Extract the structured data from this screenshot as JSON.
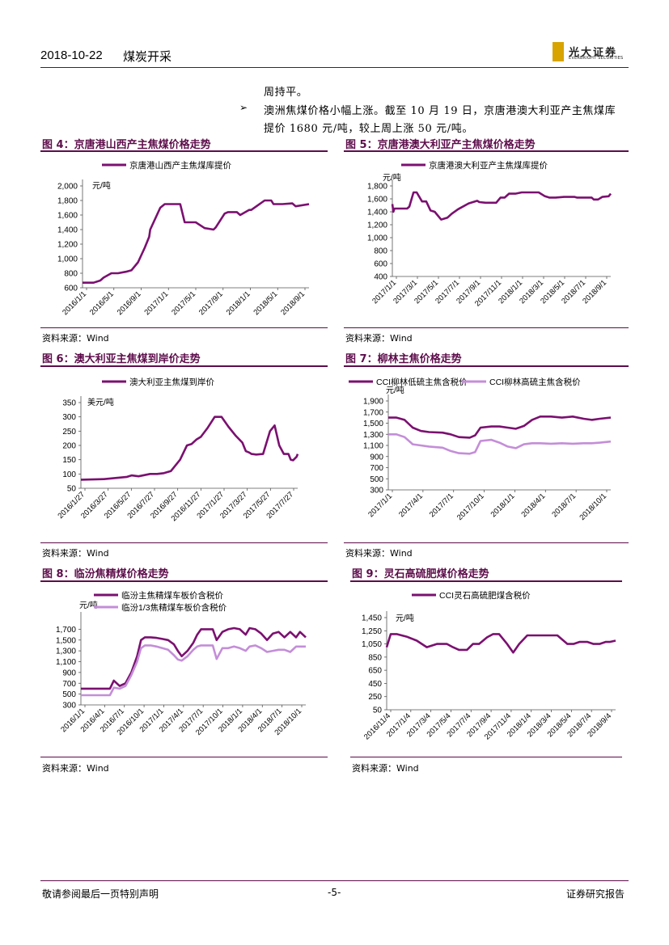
{
  "header": {
    "date": "2018-10-22",
    "sector": "煤炭开采",
    "logo_cn": "光大证券",
    "logo_en": "EVERBRIGHT SECURITIES"
  },
  "text": {
    "line1": "周持平。",
    "line2": "澳洲焦煤价格小幅上涨。截至 10 月 19 日，京唐港澳大利亚产主焦煤库",
    "line3": "提价 1680 元/吨，较上周上涨 50 元/吨。"
  },
  "colors": {
    "primary": "#7b1070",
    "secondary": "#c48ed8",
    "rule": "#5d0d4b"
  },
  "figures": {
    "f4": {
      "title": "图 4：京唐港山西产主焦煤价格走势",
      "source": "资料来源：Wind"
    },
    "f5": {
      "title": "图 5：京唐港澳大利亚产主焦煤价格走势",
      "source": "资料来源：Wind"
    },
    "f6": {
      "title": "图 6：澳大利亚主焦煤到岸价走势",
      "source": "资料来源：Wind"
    },
    "f7": {
      "title": "图 7：柳林主焦价格走势",
      "source": "资料来源：Wind"
    },
    "f8": {
      "title": "图 8：临汾焦精煤价格走势",
      "source": "资料来源：Wind"
    },
    "f9": {
      "title": "图 9：灵石高硫肥煤价格走势",
      "source": "资料来源：Wind"
    }
  },
  "footer": {
    "left": "敬请参阅最后一页特别声明",
    "page": "-5-",
    "right": "证券研究报告"
  },
  "chart_data": [
    {
      "id": "f4",
      "type": "line",
      "unit": "元/吨",
      "ylim": [
        600,
        2000
      ],
      "yticks": [
        600,
        800,
        1000,
        1200,
        1400,
        1600,
        1800,
        2000
      ],
      "xticks": [
        "2016/1/1",
        "2016/5/1",
        "2016/9/1",
        "2017/1/1",
        "2017/5/1",
        "2017/9/1",
        "2018/1/1",
        "2018/5/1",
        "2018/9/1"
      ],
      "series": [
        {
          "name": "京唐港山西产主焦煤库提价",
          "x": [
            0,
            0.3,
            0.5,
            0.8,
            0.95,
            1.3,
            1.6,
            1.95,
            2.2,
            2.5,
            2.8,
            3,
            3.05,
            3.5,
            3.7,
            3.98,
            4.02,
            4.4,
            4.6,
            4.9,
            5.1,
            5.2,
            5.5,
            5.9,
            6,
            6.4,
            6.55,
            6.95,
            7.1,
            7.5,
            7.6,
            8.2,
            8.5,
            8.6,
            9,
            9.45,
            9.6,
            10.2
          ],
          "y": [
            670,
            670,
            670,
            700,
            740,
            800,
            800,
            820,
            840,
            950,
            1150,
            1300,
            1400,
            1700,
            1750,
            1750,
            1750,
            1750,
            1500,
            1500,
            1500,
            1480,
            1420,
            1400,
            1430,
            1620,
            1640,
            1640,
            1600,
            1670,
            1670,
            1800,
            1800,
            1750,
            1750,
            1760,
            1720,
            1750
          ]
        }
      ]
    },
    {
      "id": "f5",
      "type": "line",
      "unit": "元/吨",
      "ylim": [
        400,
        1800
      ],
      "yticks": [
        400,
        600,
        800,
        1000,
        1200,
        1400,
        1600,
        1800
      ],
      "xticks": [
        "2017/1/1",
        "2017/3/1",
        "2017/5/1",
        "2017/7/1",
        "2017/9/1",
        "2017/11/1",
        "2018/1/1",
        "2018/3/1",
        "2018/5/1",
        "2018/7/1",
        "2018/9/1"
      ],
      "series": [
        {
          "name": "京唐港澳大利亚产主焦煤库提价",
          "x": [
            0,
            0.05,
            0.1,
            0.7,
            0.8,
            1,
            1.15,
            1.4,
            1.6,
            1.8,
            2,
            2.3,
            2.6,
            2.8,
            3.1,
            3.6,
            4,
            4.1,
            4.4,
            4.9,
            5.1,
            5.3,
            5.5,
            5.8,
            6.1,
            6.4,
            6.9,
            7.2,
            7.4,
            7.7,
            8.1,
            8.6,
            8.7,
            9.4,
            9.5,
            9.7,
            9.9,
            10.2,
            10.3
          ],
          "y": [
            1520,
            1400,
            1450,
            1450,
            1480,
            1700,
            1700,
            1560,
            1560,
            1420,
            1400,
            1280,
            1310,
            1370,
            1440,
            1530,
            1570,
            1550,
            1540,
            1540,
            1620,
            1620,
            1680,
            1680,
            1700,
            1700,
            1700,
            1640,
            1620,
            1620,
            1630,
            1630,
            1620,
            1620,
            1590,
            1590,
            1630,
            1640,
            1680
          ]
        }
      ]
    },
    {
      "id": "f6",
      "type": "line",
      "unit": "美元/吨",
      "ylim": [
        50,
        350
      ],
      "yticks": [
        50,
        100,
        150,
        200,
        250,
        300,
        350
      ],
      "xticks": [
        "2016/1/27",
        "2016/3/27",
        "2016/5/27",
        "2016/7/27",
        "2016/9/27",
        "2016/11/27",
        "2017/1/27",
        "2017/3/27",
        "2017/5/27",
        "2017/7/27"
      ],
      "series": [
        {
          "name": "澳大利亚主焦煤到岸价",
          "x": [
            0,
            1,
            1.5,
            2,
            2.2,
            2.5,
            3,
            3.3,
            3.6,
            3.9,
            4.3,
            4.6,
            4.8,
            5,
            5.2,
            5.5,
            5.8,
            6.1,
            6.4,
            6.7,
            7,
            7.15,
            7.3,
            7.4,
            7.6,
            7.9,
            8.2,
            8.4,
            8.6,
            8.8,
            9,
            9.1,
            9.2,
            9.35,
            9.4
          ],
          "y": [
            80,
            82,
            86,
            90,
            95,
            92,
            100,
            100,
            103,
            110,
            150,
            200,
            205,
            220,
            230,
            262,
            300,
            300,
            265,
            235,
            210,
            180,
            175,
            170,
            168,
            170,
            250,
            270,
            200,
            170,
            170,
            150,
            148,
            160,
            170
          ]
        }
      ]
    },
    {
      "id": "f7",
      "type": "line",
      "unit": "元/吨",
      "ylim": [
        300,
        1900
      ],
      "yticks": [
        300,
        500,
        700,
        900,
        1100,
        1300,
        1500,
        1700,
        1900
      ],
      "xticks": [
        "2017/1/1",
        "2017/4/1",
        "2017/7/1",
        "2017/10/1",
        "2018/1/1",
        "2018/4/1",
        "2018/7/1",
        "2018/10/1"
      ],
      "series": [
        {
          "name": "CCI柳林低硫主焦含税价",
          "x": [
            0,
            0.3,
            0.6,
            0.9,
            1.2,
            1.5,
            2,
            2.3,
            2.6,
            3,
            3.2,
            3.4,
            3.8,
            4.1,
            4.4,
            4.7,
            5,
            5.3,
            5.6,
            6,
            6.4,
            6.8,
            7.2,
            7.5,
            7.8,
            8.2
          ],
          "y": [
            1600,
            1600,
            1560,
            1420,
            1360,
            1340,
            1330,
            1300,
            1250,
            1240,
            1280,
            1420,
            1440,
            1440,
            1420,
            1400,
            1450,
            1560,
            1620,
            1620,
            1600,
            1620,
            1580,
            1560,
            1580,
            1600
          ]
        },
        {
          "name": "CCI柳林高硫主焦含税价",
          "x": [
            0,
            0.3,
            0.6,
            0.9,
            1.2,
            1.5,
            2,
            2.3,
            2.6,
            3,
            3.2,
            3.4,
            3.8,
            4.1,
            4.4,
            4.7,
            5,
            5.3,
            5.6,
            6,
            6.4,
            6.8,
            7.2,
            7.5,
            7.8,
            8.2
          ],
          "y": [
            1300,
            1300,
            1250,
            1120,
            1100,
            1080,
            1060,
            1000,
            960,
            950,
            980,
            1180,
            1200,
            1150,
            1080,
            1050,
            1120,
            1140,
            1140,
            1130,
            1140,
            1130,
            1140,
            1140,
            1150,
            1170
          ]
        }
      ]
    },
    {
      "id": "f8",
      "type": "line",
      "unit": "元/吨",
      "ylim": [
        300,
        1900
      ],
      "yticks": [
        300,
        500,
        700,
        900,
        1100,
        1300,
        1500,
        1700
      ],
      "xticks": [
        "2016/1/1",
        "2016/4/1",
        "2016/7/1",
        "2016/10/1",
        "2017/1/1",
        "2017/4/1",
        "2017/7/1",
        "2017/10/1",
        "2018/1/1",
        "2018/4/1",
        "2018/7/1",
        "2018/10/1"
      ],
      "series": [
        {
          "name": "临汾主焦精煤车板价含税价",
          "x": [
            0,
            0.5,
            1,
            1.5,
            1.7,
            2,
            2.3,
            2.6,
            2.9,
            3.1,
            3.3,
            3.6,
            3.9,
            4.2,
            4.5,
            4.8,
            5,
            5.2,
            5.5,
            5.8,
            6,
            6.2,
            6.5,
            6.8,
            7,
            7.3,
            7.6,
            7.9,
            8.2,
            8.5,
            8.7,
            9,
            9.3,
            9.6,
            9.9,
            10.2,
            10.5,
            10.8,
            11.1,
            11.3,
            11.6
          ],
          "y": [
            600,
            600,
            600,
            600,
            750,
            650,
            700,
            900,
            1200,
            1500,
            1550,
            1550,
            1540,
            1520,
            1500,
            1420,
            1300,
            1200,
            1300,
            1450,
            1600,
            1700,
            1700,
            1700,
            1500,
            1650,
            1700,
            1720,
            1700,
            1600,
            1720,
            1700,
            1620,
            1500,
            1620,
            1650,
            1550,
            1650,
            1550,
            1650,
            1550
          ]
        },
        {
          "name": "临汾1/3焦精煤车板价含税价",
          "x": [
            0,
            0.5,
            1,
            1.5,
            1.7,
            2,
            2.3,
            2.6,
            2.9,
            3.1,
            3.3,
            3.6,
            3.9,
            4.2,
            4.5,
            4.8,
            5,
            5.2,
            5.5,
            5.8,
            6,
            6.2,
            6.5,
            6.8,
            7,
            7.3,
            7.6,
            7.9,
            8.2,
            8.5,
            8.7,
            9,
            9.3,
            9.6,
            9.9,
            10.2,
            10.5,
            10.8,
            11.1,
            11.3,
            11.6
          ],
          "y": [
            480,
            480,
            480,
            480,
            620,
            600,
            650,
            850,
            1100,
            1350,
            1400,
            1400,
            1380,
            1350,
            1320,
            1220,
            1140,
            1120,
            1200,
            1320,
            1380,
            1400,
            1400,
            1400,
            1150,
            1350,
            1350,
            1380,
            1350,
            1300,
            1380,
            1400,
            1350,
            1280,
            1300,
            1320,
            1320,
            1280,
            1380,
            1380,
            1380
          ]
        }
      ]
    },
    {
      "id": "f9",
      "type": "line",
      "unit": "元/吨",
      "ylim": [
        50,
        1450
      ],
      "yticks": [
        50,
        250,
        450,
        650,
        850,
        1050,
        1250,
        1450
      ],
      "xticks": [
        "2016/11/4",
        "2017/1/4",
        "2017/3/4",
        "2017/5/4",
        "2017/7/4",
        "2017/9/4",
        "2017/11/4",
        "2018/1/4",
        "2018/3/4",
        "2018/5/4",
        "2018/7/4",
        "2018/9/4"
      ],
      "series": [
        {
          "name": "CCI灵石高硫肥煤含税价",
          "x": [
            0,
            0.2,
            0.5,
            1,
            1.5,
            2,
            2.5,
            3,
            3.3,
            3.6,
            4,
            4.3,
            4.6,
            5,
            5.3,
            5.6,
            6,
            6.3,
            6.6,
            7,
            7.2,
            7.5,
            8,
            8.5,
            9,
            9.3,
            9.6,
            10,
            10.3,
            10.6,
            10.9,
            11.1,
            11.4
          ],
          "y": [
            1000,
            1200,
            1200,
            1160,
            1100,
            1000,
            1050,
            1050,
            1000,
            960,
            960,
            1050,
            1050,
            1150,
            1200,
            1200,
            1050,
            920,
            1050,
            1180,
            1180,
            1180,
            1180,
            1180,
            1050,
            1050,
            1080,
            1080,
            1050,
            1050,
            1080,
            1080,
            1100
          ]
        }
      ]
    }
  ]
}
